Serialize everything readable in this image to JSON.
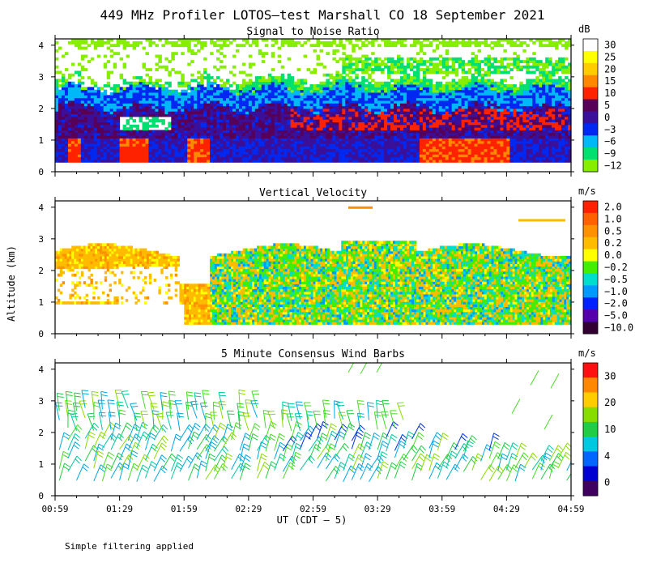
{
  "page": {
    "title": "449 MHz Profiler LOTOS—test Marshall CO 18 September 2021",
    "note": "Simple filtering applied",
    "ylabel": "Altitude (km)",
    "xlabel": "UT  (CDT – 5)"
  },
  "colors": {
    "frame": "#000000",
    "background": "#ffffff"
  },
  "chart_data": [
    {
      "type": "heatmap",
      "title": "Signal to Noise Ratio",
      "unit": "dB",
      "xlabel": "UT  (CDT – 5)",
      "ylabel": "Altitude (km)",
      "x_ticks": [
        "00:59",
        "01:29",
        "01:59",
        "02:29",
        "02:59",
        "03:29",
        "03:59",
        "04:29",
        "04:59"
      ],
      "y_ticks": [
        "0",
        "1",
        "2",
        "3",
        "4"
      ],
      "ylim": [
        0,
        4.2
      ],
      "xlim_minutes": [
        0,
        240
      ],
      "colorbar": {
        "labels": [
          "30",
          "25",
          "20",
          "15",
          "10",
          "5",
          "0",
          "−3",
          "−6",
          "−9",
          "−12"
        ],
        "colors": [
          "#ffffff",
          "#ffff00",
          "#ffcc00",
          "#ff8800",
          "#ff2200",
          "#580058",
          "#3a109a",
          "#0028f0",
          "#00b8f8",
          "#00e070",
          "#88ee00"
        ]
      },
      "layers": [
        {
          "alt_from": 0.3,
          "alt_to": 2.1,
          "level": "0",
          "note": "dominant purple low-SNR band"
        },
        {
          "alt_from": 2.1,
          "alt_to": 2.8,
          "level": "−6",
          "note": "cyan/green edge layer"
        },
        {
          "alt_from": 3.0,
          "alt_to": 4.2,
          "level": "−12",
          "note": "sparse green near top"
        },
        {
          "alt_from": 0.3,
          "alt_to": 1.0,
          "level": "15",
          "note": "orange/red patches near surface"
        }
      ]
    },
    {
      "type": "heatmap",
      "title": "Vertical Velocity",
      "unit": "m/s",
      "x_ticks": [
        "00:59",
        "01:29",
        "01:59",
        "02:29",
        "02:59",
        "03:29",
        "03:59",
        "04:29",
        "04:59"
      ],
      "y_ticks": [
        "0",
        "1",
        "2",
        "3",
        "4"
      ],
      "ylim": [
        0,
        4.2
      ],
      "colorbar": {
        "labels": [
          "2.0",
          "1.0",
          "0.5",
          "0.2",
          "0.0",
          "−0.2",
          "−0.5",
          "−1.0",
          "−2.0",
          "−5.0",
          "−10.0"
        ],
        "colors": [
          "#ff2000",
          "#ff6000",
          "#ff9000",
          "#ffbb00",
          "#ffff00",
          "#44ee00",
          "#00ddcc",
          "#0099ff",
          "#0022ff",
          "#5500aa",
          "#330033"
        ]
      },
      "coverage": {
        "alt_from": 0.3,
        "alt_to": 2.9,
        "dominant": [
          "0.2",
          "0.0",
          "−0.2"
        ]
      }
    },
    {
      "type": "scatter",
      "title": "5 Minute Consensus Wind Barbs",
      "unit": "m/s",
      "x_ticks": [
        "00:59",
        "01:29",
        "01:59",
        "02:29",
        "02:59",
        "03:29",
        "03:59",
        "04:29",
        "04:59"
      ],
      "y_ticks": [
        "0",
        "1",
        "2",
        "3",
        "4"
      ],
      "ylim": [
        0,
        4.2
      ],
      "colorbar": {
        "labels": [
          "30",
          "20",
          "10",
          "4",
          "0"
        ],
        "colors": [
          "#ff1010",
          "#ff8800",
          "#ffcc00",
          "#88dd00",
          "#22cc44",
          "#00c8e0",
          "#0066ff",
          "#0000d0",
          "#400060"
        ]
      },
      "barb_speed_ms_typical": [
        8,
        14
      ],
      "barb_altitude_range_km": [
        0.4,
        4.0
      ]
    }
  ]
}
